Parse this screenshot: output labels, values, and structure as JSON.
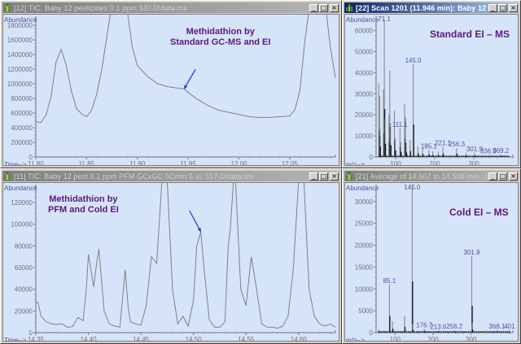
{
  "windows": [
    {
      "id": "tic12",
      "title": "[12] TIC: Baby 12 pesticides 0.1 ppm SEI.D\\data.ms",
      "active": false,
      "y_label": "Abundance",
      "x_label": "Time-->",
      "annotation": [
        "Methidathion by",
        "Standard GC-MS and EI"
      ]
    },
    {
      "id": "scan22",
      "title": "[22] Scan 1201 (11.946 min): Baby 12 pest...",
      "active": true,
      "y_label": "Abundance",
      "x_label": "m/z-->",
      "annotation": [
        "Standard EI – MS"
      ]
    },
    {
      "id": "tic11",
      "title": "[11] TIC: Baby 12 pest 0.1 ppm PFM GCxGC 5Cmin 5 uL 517.D\\data.ms",
      "active": false,
      "y_label": "Abundance",
      "x_label": "Time-->",
      "annotation": [
        "Methidathion by",
        "PFM  and Cold EI"
      ]
    },
    {
      "id": "avg21",
      "title": "[21] Average of 14.507 to 14.508 min.: Bab...",
      "active": false,
      "y_label": "Abundance",
      "x_label": "m/z-->",
      "annotation": [
        "Cold EI – MS"
      ]
    }
  ],
  "window_buttons": {
    "minimize": "_",
    "maximize": "□",
    "close": "×"
  },
  "colors": {
    "plot_bg": "#d6e4fa",
    "trace": "#808080",
    "axis_text": "#5050a0",
    "annotation": "#5a1a7a",
    "arrow": "#1a2ee0",
    "active_title": "#0a246a"
  },
  "chart_data": [
    {
      "type": "line",
      "title": "TIC: Baby 12 pesticides 0.1 ppm SEI",
      "xlabel": "Time-->",
      "ylabel": "Abundance",
      "xlim": [
        11.8,
        12.095
      ],
      "ylim": [
        0,
        1900000
      ],
      "x_ticks": [
        "11.80",
        "11.85",
        "11.90",
        "11.95",
        "12.00",
        "12.05"
      ],
      "y_ticks": [
        "0",
        "200000",
        "400000",
        "600000",
        "800000",
        "1000000",
        "1200000",
        "1400000",
        "1600000",
        "1800000"
      ],
      "x": [
        11.8,
        11.805,
        11.81,
        11.815,
        11.82,
        11.825,
        11.83,
        11.835,
        11.84,
        11.845,
        11.85,
        11.855,
        11.86,
        11.865,
        11.87,
        11.875,
        11.88,
        11.885,
        11.89,
        11.895,
        11.9,
        11.91,
        11.92,
        11.93,
        11.94,
        11.946,
        11.95,
        11.96,
        11.97,
        11.98,
        11.99,
        12.0,
        12.01,
        12.02,
        12.03,
        12.04,
        12.05,
        12.055,
        12.06,
        12.065,
        12.07,
        12.08,
        12.085,
        12.09,
        12.095
      ],
      "values": [
        480000,
        470000,
        570000,
        820000,
        1300000,
        1470000,
        1250000,
        900000,
        660000,
        590000,
        550000,
        640000,
        860000,
        1200000,
        1650000,
        2100000,
        2100000,
        2100000,
        2000000,
        1500000,
        1250000,
        1100000,
        1000000,
        960000,
        940000,
        930000,
        880000,
        780000,
        700000,
        640000,
        610000,
        580000,
        550000,
        540000,
        540000,
        550000,
        560000,
        640000,
        900000,
        1600000,
        2100000,
        2100000,
        2100000,
        1500000,
        1080000
      ],
      "annotations": [
        {
          "text": "Methidathion by Standard GC-MS and EI",
          "x": 11.946,
          "y": 930000
        }
      ],
      "grid": false
    },
    {
      "type": "bar",
      "title": "Scan 1201 (11.946 min): Standard EI – MS",
      "xlabel": "m/z-->",
      "ylabel": "Abundance",
      "xlim": [
        50,
        400
      ],
      "ylim": [
        0,
        66000
      ],
      "x_ticks": [
        "100",
        "200",
        "300"
      ],
      "y_ticks": [
        "0",
        "10000",
        "20000",
        "30000",
        "40000",
        "50000",
        "60000"
      ],
      "peak_labels": [
        {
          "mz": 71.1,
          "abundance": 65000
        },
        {
          "mz": 111.1,
          "abundance": 13500
        },
        {
          "mz": 145.0,
          "abundance": 44000
        },
        {
          "mz": 185.1,
          "abundance": 3300
        },
        {
          "mz": 221.1,
          "abundance": 4800
        },
        {
          "mz": 256.3,
          "abundance": 4200
        },
        {
          "mz": 301.9,
          "abundance": 2000
        },
        {
          "mz": 336.9,
          "abundance": 1000
        },
        {
          "mz": 369.2,
          "abundance": 1200
        }
      ],
      "mz": [
        57,
        59,
        60,
        69,
        71,
        73,
        83,
        85,
        87,
        97,
        99,
        111,
        113,
        123,
        125,
        127,
        137,
        145,
        157,
        169,
        185,
        195,
        209,
        221,
        256,
        280,
        301.9,
        336.9,
        369.2
      ],
      "values": [
        35000,
        29000,
        14000,
        32000,
        65000,
        18000,
        20000,
        41000,
        16000,
        22000,
        9000,
        13500,
        7000,
        25000,
        19000,
        6000,
        8000,
        44000,
        5000,
        4000,
        3300,
        2600,
        2500,
        4800,
        4200,
        2000,
        2000,
        1000,
        1200
      ]
    },
    {
      "type": "line",
      "title": "TIC: Baby 12 pest 0.1 ppm PFM GCxGC 5Cmin 5 uL 517",
      "xlabel": "Time-->",
      "ylabel": "Abundance",
      "xlim": [
        14.35,
        14.635
      ],
      "ylim": [
        0,
        135000
      ],
      "x_ticks": [
        "14.35",
        "14.40",
        "14.45",
        "14.50",
        "14.55",
        "14.60"
      ],
      "y_ticks": [
        "0",
        "20000",
        "40000",
        "60000",
        "80000",
        "100000",
        "120000"
      ],
      "x": [
        14.35,
        14.352,
        14.355,
        14.36,
        14.365,
        14.37,
        14.375,
        14.38,
        14.385,
        14.39,
        14.395,
        14.398,
        14.4,
        14.403,
        14.405,
        14.408,
        14.41,
        14.415,
        14.42,
        14.425,
        14.43,
        14.435,
        14.438,
        14.44,
        14.445,
        14.45,
        14.455,
        14.46,
        14.465,
        14.47,
        14.475,
        14.48,
        14.485,
        14.49,
        14.495,
        14.5,
        14.503,
        14.507,
        14.51,
        14.515,
        14.52,
        14.525,
        14.53,
        14.533,
        14.535,
        14.538,
        14.54,
        14.545,
        14.55,
        14.555,
        14.56,
        14.565,
        14.57,
        14.575,
        14.58,
        14.585,
        14.59,
        14.595,
        14.6,
        14.605,
        14.61,
        14.615,
        14.62,
        14.625,
        14.63,
        14.635
      ],
      "values": [
        28000,
        28000,
        15000,
        10000,
        8000,
        7500,
        8000,
        5000,
        5500,
        14000,
        11000,
        40000,
        72000,
        55000,
        42000,
        65000,
        77000,
        20000,
        8000,
        6000,
        5000,
        58000,
        22000,
        10000,
        8000,
        7000,
        25000,
        70000,
        64000,
        140000,
        140000,
        40000,
        8000,
        15000,
        6000,
        30000,
        80000,
        93000,
        60000,
        12000,
        5000,
        5000,
        10000,
        80000,
        95000,
        140000,
        140000,
        40000,
        25000,
        70000,
        40000,
        8000,
        5000,
        5000,
        4000,
        6000,
        15000,
        60000,
        140000,
        140000,
        40000,
        15000,
        8000,
        6000,
        8000,
        5000
      ],
      "annotations": [
        {
          "text": "Methidathion by PFM  and Cold EI",
          "x": 14.507,
          "y": 93000
        }
      ],
      "grid": false
    },
    {
      "type": "bar",
      "title": "Average of 14.507 to 14.508 min.: Cold EI – MS",
      "xlabel": "m/z-->",
      "ylabel": "Abundance",
      "xlim": [
        50,
        410
      ],
      "ylim": [
        0,
        33500
      ],
      "x_ticks": [
        "100",
        "200",
        "300"
      ],
      "y_ticks": [
        "0",
        "5000",
        "10000",
        "15000",
        "20000",
        "25000",
        "30000"
      ],
      "peak_labels": [
        {
          "mz": 85.1,
          "abundance": 11000
        },
        {
          "mz": 145.0,
          "abundance": 33500
        },
        {
          "mz": 176.7,
          "abundance": 800
        },
        {
          "mz": 213.6,
          "abundance": 500
        },
        {
          "mz": 256.2,
          "abundance": 600
        },
        {
          "mz": 301.9,
          "abundance": 17500
        },
        {
          "mz": 368.1,
          "abundance": 600
        },
        {
          "mz": 401,
          "abundance": 600
        }
      ],
      "mz": [
        58,
        71,
        85.1,
        93,
        111,
        125,
        145.0,
        146,
        157,
        176.7,
        213.6,
        256.2,
        301.9,
        303,
        368.1,
        401
      ],
      "values": [
        700,
        500,
        11000,
        2600,
        400,
        3800,
        33500,
        1900,
        400,
        800,
        500,
        600,
        17500,
        2200,
        600,
        600
      ]
    }
  ]
}
